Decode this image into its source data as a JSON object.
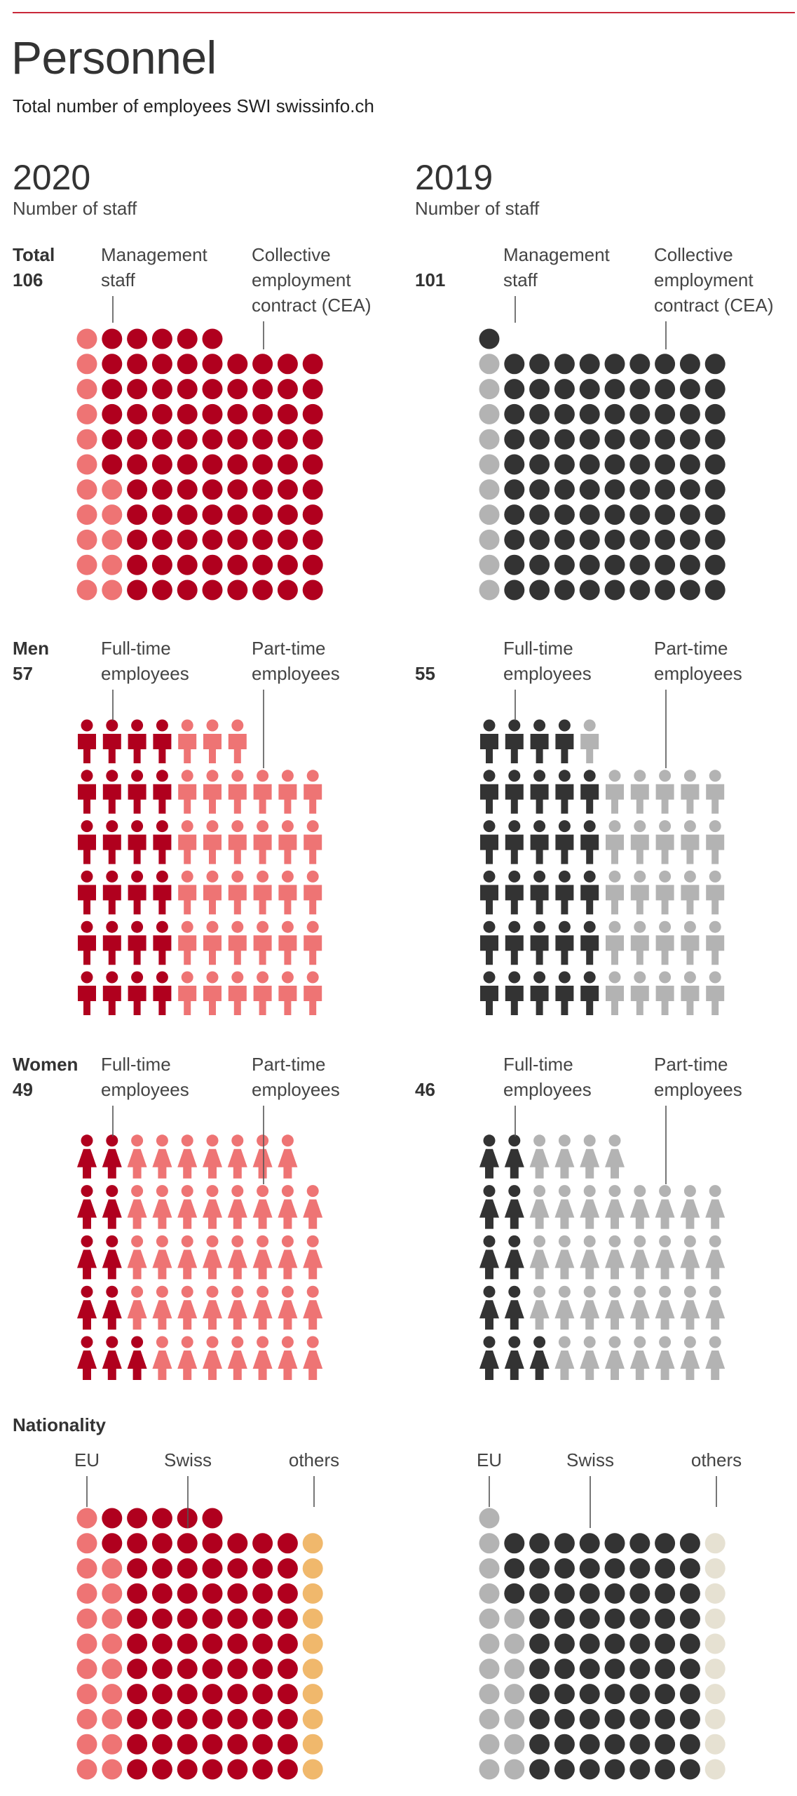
{
  "header": {
    "title": "Personnel",
    "subtitle": "Total number of employees SWI swissinfo.ch"
  },
  "colors": {
    "red_dark": "#b0001e",
    "red_light": "#ee7474",
    "orange": "#f0b86c",
    "gray_dark": "#333333",
    "gray_light": "#b3b3b3",
    "beige": "#e6e1d2",
    "accent_line": "#c8283a",
    "text": "#333333"
  },
  "chart_data": [
    {
      "type": "waffle",
      "id": "total-2020",
      "year": "2020",
      "subtitle": "Number of staff",
      "row_label": "Total",
      "row_value": "106",
      "icon": "circle",
      "series": [
        {
          "name": "Management staff",
          "value": 16,
          "color": "red_light"
        },
        {
          "name": "Collective employment contract (CEA)",
          "value": 90,
          "color": "red_dark"
        }
      ]
    },
    {
      "type": "waffle",
      "id": "total-2019",
      "year": "2019",
      "subtitle": "Number of staff",
      "row_value": "101",
      "icon": "circle",
      "series": [
        {
          "name": "Management staff",
          "value": 10,
          "color": "gray_light"
        },
        {
          "name": "Collective employment contract (CEA)",
          "value": 91,
          "color": "gray_dark"
        }
      ]
    },
    {
      "type": "waffle",
      "id": "men-2020",
      "row_label": "Men",
      "row_value": "57",
      "icon": "man",
      "series": [
        {
          "name": "Full-time employees",
          "value": 24,
          "color": "red_dark"
        },
        {
          "name": "Part-time employees",
          "value": 33,
          "color": "red_light"
        }
      ]
    },
    {
      "type": "waffle",
      "id": "men-2019",
      "row_value": "55",
      "icon": "man",
      "series": [
        {
          "name": "Full-time employees",
          "value": 29,
          "color": "gray_dark"
        },
        {
          "name": "Part-time employees",
          "value": 26,
          "color": "gray_light"
        }
      ]
    },
    {
      "type": "waffle",
      "id": "women-2020",
      "row_label": "Women",
      "row_value": "49",
      "icon": "woman",
      "series": [
        {
          "name": "Full-time employees",
          "value": 11,
          "color": "red_dark"
        },
        {
          "name": "Part-time employees",
          "value": 38,
          "color": "red_light"
        }
      ]
    },
    {
      "type": "waffle",
      "id": "women-2019",
      "row_value": "46",
      "icon": "woman",
      "series": [
        {
          "name": "Full-time employees",
          "value": 11,
          "color": "gray_dark"
        },
        {
          "name": "Part-time employees",
          "value": 35,
          "color": "gray_light"
        }
      ]
    },
    {
      "type": "waffle",
      "id": "nationality-2020",
      "row_label": "Nationality",
      "icon": "circle",
      "series": [
        {
          "name": "EU",
          "value": 20,
          "color": "red_light"
        },
        {
          "name": "Swiss",
          "value": 76,
          "color": "red_dark"
        },
        {
          "name": "others",
          "value": 10,
          "color": "orange"
        }
      ]
    },
    {
      "type": "waffle",
      "id": "nationality-2019",
      "icon": "circle",
      "series": [
        {
          "name": "EU",
          "value": 18,
          "color": "gray_light"
        },
        {
          "name": "Swiss",
          "value": 73,
          "color": "gray_dark"
        },
        {
          "name": "others",
          "value": 10,
          "color": "beige"
        }
      ]
    }
  ]
}
